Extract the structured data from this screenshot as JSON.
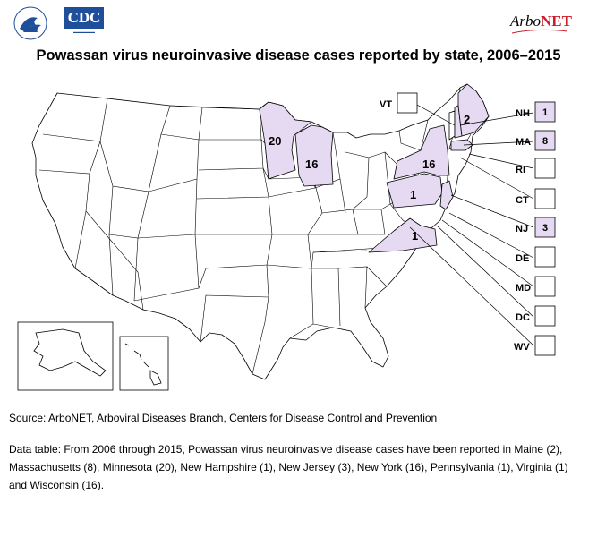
{
  "header": {
    "cdc_logo_text": "CDC",
    "arbonet_logo_prefix": "Arbo",
    "arbonet_logo_suffix": "NET",
    "title": "Powassan virus neuroinvasive disease cases reported by state, 2006–2015"
  },
  "colors": {
    "reported_fill": "#e6d9f2",
    "no_cases_fill": "#ffffff",
    "border": "#000000",
    "cdc_blue": "#1f4e9b",
    "arbonet_red": "#cc1f2b"
  },
  "map": {
    "state_labels": [
      {
        "state": "Minnesota",
        "value": "20"
      },
      {
        "state": "Wisconsin",
        "value": "16"
      },
      {
        "state": "Maine",
        "value": "2"
      },
      {
        "state": "New York",
        "value": "16"
      },
      {
        "state": "Pennsylvania",
        "value": "1"
      },
      {
        "state": "Virginia",
        "value": "1"
      }
    ],
    "callouts": [
      {
        "abbr": "VT",
        "value": ""
      },
      {
        "abbr": "NH",
        "value": "1"
      },
      {
        "abbr": "MA",
        "value": "8"
      },
      {
        "abbr": "RI",
        "value": ""
      },
      {
        "abbr": "CT",
        "value": ""
      },
      {
        "abbr": "NJ",
        "value": "3"
      },
      {
        "abbr": "DE",
        "value": ""
      },
      {
        "abbr": "MD",
        "value": ""
      },
      {
        "abbr": "DC",
        "value": ""
      },
      {
        "abbr": "WV",
        "value": ""
      }
    ]
  },
  "footer": {
    "source": "Source: ArboNET, Arboviral Diseases Branch, Centers for Disease Control and Prevention",
    "data_table": "Data table: From 2006 through 2015, Powassan virus neuroinvasive disease cases have been reported in Maine (2), Massachusetts (8), Minnesota (20), New Hampshire (1), New Jersey (3), New York (16), Pennsylvania (1), Virginia (1) and Wisconsin (16)."
  }
}
